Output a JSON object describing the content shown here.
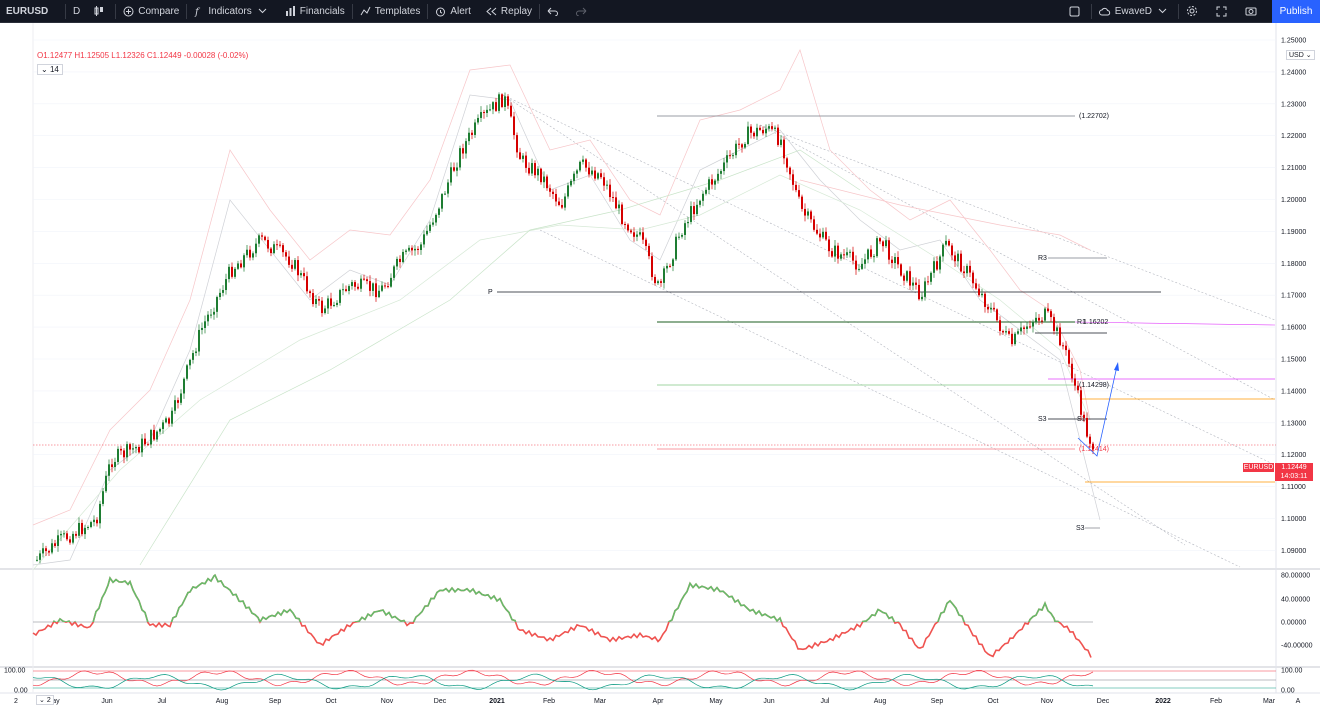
{
  "toolbar": {
    "symbol": "EURUSD",
    "interval": "D",
    "compare": "Compare",
    "indicators": "Indicators",
    "financials": "Financials",
    "templates": "Templates",
    "alert": "Alert",
    "replay": "Replay",
    "layout_name": "EwaveD",
    "publish": "Publish"
  },
  "legend": {
    "ohlc": "O1.12477 H1.12505 L1.12326 C1.12449 -0.00028 (-0.02%)",
    "study": "14"
  },
  "price_scale": {
    "currency": "USD",
    "ticks": [
      "1.25000",
      "1.24000",
      "1.23000",
      "1.22000",
      "1.21000",
      "1.20000",
      "1.19000",
      "1.18000",
      "1.17000",
      "1.16000",
      "1.15000",
      "1.14000",
      "1.13000",
      "1.12000",
      "1.11000",
      "1.10000",
      "1.09000"
    ]
  },
  "last_price": {
    "symbol": "EURUSD",
    "price": "1.12449",
    "countdown": "14:03:11"
  },
  "levels": {
    "top": "(1.22702)",
    "r3": "R3",
    "p": "P",
    "r1": "R1",
    "r1_val": "1.16202",
    "mid": "(1.14298)",
    "s3": "S3",
    "s1": "S1",
    "low": "(1.12414)",
    "s3b": "S3"
  },
  "osc1": {
    "ticks": [
      "80.00000",
      "40.00000",
      "0.00000",
      "-40.00000"
    ]
  },
  "osc2": {
    "ticks": [
      "100.00",
      "0.00"
    ],
    "study": "2"
  },
  "time_axis": {
    "left_badge": "2",
    "labels": [
      "May",
      "Jun",
      "Jul",
      "Aug",
      "Sep",
      "Oct",
      "Nov",
      "Dec",
      "2021",
      "Feb",
      "Mar",
      "Apr",
      "May",
      "Jun",
      "Jul",
      "Aug",
      "Sep",
      "Oct",
      "Nov",
      "Dec",
      "2022",
      "Feb",
      "Mar"
    ]
  },
  "colors": {
    "up": "#089981",
    "down": "#f23645",
    "brand": "#2962ff",
    "osc_up": "#66bb6a",
    "osc_down": "#ef5350"
  }
}
